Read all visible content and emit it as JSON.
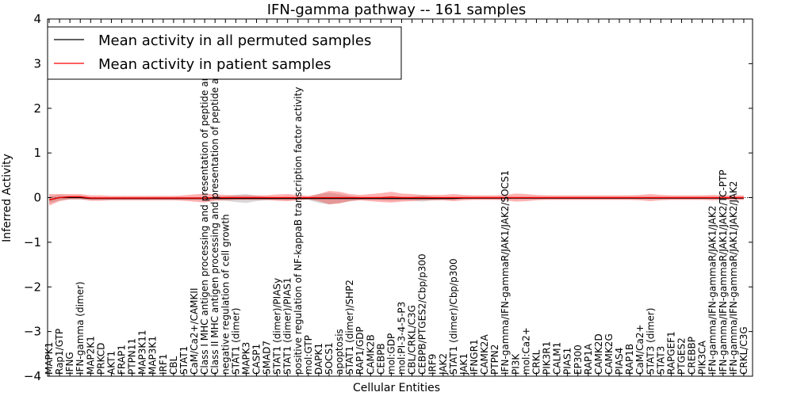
{
  "chart_data": {
    "type": "line",
    "title": "IFN-gamma pathway -- 161 samples",
    "xlabel": "Cellular Entities",
    "ylabel": "Inferred Activity",
    "ylim": [
      -4,
      4
    ],
    "yticks": [
      -4,
      -3,
      -2,
      -1,
      0,
      1,
      2,
      3,
      4
    ],
    "ytick_labels": [
      "−4",
      "−3",
      "−2",
      "−1",
      "0",
      "1",
      "2",
      "3",
      "4"
    ],
    "legend_position": "top-left",
    "categories": [
      "MAPK1",
      "Rap1/GTP",
      "IFNG",
      "IFN-gamma (dimer)",
      "MAP2K1",
      "PRKCD",
      "AKT1",
      "FRAP1",
      "PTPN11",
      "MAP3K11",
      "MAP3K1",
      "IRF1",
      "CBL",
      "STAT1",
      "CaM/Ca2+/CAMKII",
      "Class I MHC antigen processing and presentation of peptide antigen",
      "Class II MHC antigen processing and presentation of peptide antigen",
      "negative regulation of cell growth",
      "STAT1 (dimer)",
      "MAPK3",
      "CASP1",
      "SMAD7",
      "STAT1 (dimer)/PIASy",
      "STAT1 (dimer)/PIAS1",
      "positive regulation of NF-kappaB transcription factor activity",
      "mol:GTP",
      "DAPK1",
      "SOCS1",
      "apoptosis",
      "STAT1 (dimer)/SHP2",
      "RAP1/GDP",
      "CAMK2B",
      "CEBPB",
      "mol:GDP",
      "mol:PI-3-4-5-P3",
      "CBL/CRKL/C3G",
      "CEBPB/PTGES2/Cbp/p300",
      "IRF9",
      "JAK2",
      "STAT1 (dimer)/Cbp/p300",
      "JAK1",
      "IFNGR1",
      "CAMK2A",
      "PTPN2",
      "IFN-gamma/IFN-gammaR/JAK1/JAK2/SOCS1",
      "PI3K",
      "mol:Ca2+",
      "CRKL",
      "PIK3R1",
      "CALM1",
      "PIAS1",
      "EP300",
      "RAP1A",
      "CAMK2D",
      "CAMK2G",
      "PIAS4",
      "RAP1B",
      "CaM/Ca2+",
      "STAT3 (dimer)",
      "STAT3",
      "RAPGEF1",
      "PTGES2",
      "CREBBP",
      "PIK3CA",
      "IFN-gamma/IFN-gammaR/JAK1/JAK2",
      "IFN-gamma/IFN-gammaR/JAK1/JAK2/TC-PTP",
      "IFN-gamma/IFN-gammaR/JAK1/JAK2/JAK2",
      "CRKL/C3G"
    ],
    "series": [
      {
        "name": "Mean activity in all permuted samples",
        "color": "#000000",
        "values": [
          -0.05,
          0.0,
          0.0,
          0.0,
          -0.02,
          -0.02,
          -0.02,
          -0.02,
          -0.02,
          -0.02,
          -0.02,
          -0.02,
          -0.02,
          -0.02,
          -0.02,
          -0.02,
          -0.02,
          -0.02,
          -0.02,
          -0.02,
          -0.02,
          -0.02,
          -0.02,
          -0.02,
          -0.02,
          -0.02,
          -0.02,
          -0.02,
          -0.02,
          -0.02,
          -0.02,
          -0.02,
          -0.02,
          -0.02,
          -0.02,
          -0.02,
          -0.02,
          -0.02,
          -0.02,
          -0.02,
          -0.01,
          -0.01,
          -0.01,
          -0.01,
          -0.01,
          -0.01,
          -0.01,
          -0.01,
          -0.01,
          -0.01,
          -0.01,
          -0.01,
          -0.01,
          -0.01,
          -0.01,
          -0.01,
          -0.01,
          -0.01,
          -0.01,
          -0.01,
          -0.01,
          -0.01,
          -0.01,
          -0.01,
          -0.01,
          -0.01,
          -0.01,
          -0.01
        ],
        "band": [
          0.08,
          0.06,
          0.04,
          0.04,
          0.03,
          0.03,
          0.03,
          0.03,
          0.03,
          0.03,
          0.03,
          0.03,
          0.03,
          0.03,
          0.03,
          0.03,
          0.03,
          0.05,
          0.08,
          0.1,
          0.06,
          0.04,
          0.03,
          0.04,
          0.03,
          0.03,
          0.1,
          0.13,
          0.1,
          0.06,
          0.03,
          0.03,
          0.04,
          0.05,
          0.04,
          0.04,
          0.07,
          0.04,
          0.03,
          0.03,
          0.03,
          0.03,
          0.03,
          0.03,
          0.03,
          0.03,
          0.03,
          0.03,
          0.03,
          0.03,
          0.03,
          0.03,
          0.03,
          0.03,
          0.03,
          0.03,
          0.03,
          0.03,
          0.03,
          0.03,
          0.03,
          0.03,
          0.03,
          0.03,
          0.03,
          0.03,
          0.03,
          0.03
        ]
      },
      {
        "name": "Mean activity in patient samples",
        "color": "#ff0000",
        "values": [
          -0.05,
          0.0,
          0.02,
          0.02,
          -0.01,
          -0.01,
          -0.01,
          -0.01,
          -0.01,
          -0.01,
          -0.01,
          -0.01,
          -0.01,
          -0.01,
          -0.01,
          -0.01,
          0.0,
          0.0,
          0.0,
          0.0,
          0.0,
          0.0,
          0.0,
          0.0,
          0.0,
          0.0,
          0.0,
          0.0,
          0.0,
          0.0,
          0.0,
          0.0,
          0.0,
          0.01,
          0.0,
          0.0,
          0.0,
          0.0,
          0.0,
          0.0,
          0.0,
          0.0,
          0.0,
          0.0,
          0.0,
          0.0,
          0.0,
          0.0,
          0.0,
          0.0,
          0.0,
          0.0,
          0.0,
          0.0,
          0.0,
          0.0,
          0.0,
          0.0,
          0.0,
          0.0,
          0.0,
          0.0,
          0.0,
          0.0,
          0.0,
          0.0,
          0.0,
          0.0
        ],
        "band": [
          0.13,
          0.08,
          0.06,
          0.06,
          0.06,
          0.06,
          0.05,
          0.05,
          0.05,
          0.05,
          0.05,
          0.05,
          0.05,
          0.06,
          0.08,
          0.1,
          0.07,
          0.06,
          0.05,
          0.05,
          0.05,
          0.05,
          0.07,
          0.08,
          0.06,
          0.04,
          0.08,
          0.15,
          0.13,
          0.08,
          0.06,
          0.08,
          0.1,
          0.12,
          0.09,
          0.08,
          0.06,
          0.06,
          0.06,
          0.08,
          0.06,
          0.05,
          0.05,
          0.05,
          0.06,
          0.09,
          0.08,
          0.06,
          0.05,
          0.05,
          0.05,
          0.05,
          0.05,
          0.05,
          0.05,
          0.05,
          0.05,
          0.06,
          0.08,
          0.06,
          0.05,
          0.05,
          0.05,
          0.05,
          0.06,
          0.05,
          0.05,
          0.05
        ]
      }
    ]
  }
}
